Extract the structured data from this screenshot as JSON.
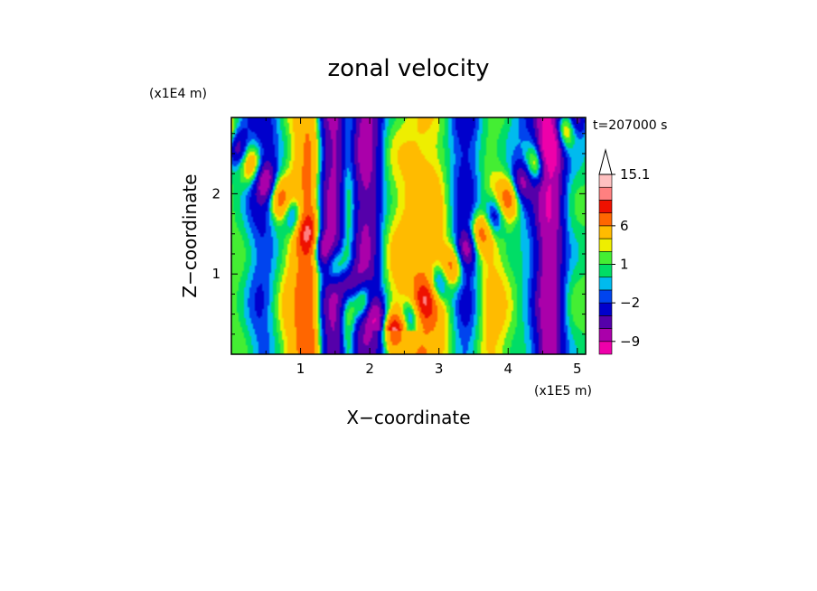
{
  "chart_data": {
    "type": "heatmap",
    "title": "zonal velocity",
    "xlabel": "X−coordinate",
    "ylabel": "Z−coordinate",
    "x_unit": "(x1E5 m)",
    "y_unit": "(x1E4 m)",
    "time_label": "t=207000 s",
    "xlim": [
      0,
      5.12
    ],
    "ylim": [
      0,
      2.95
    ],
    "x_ticks": [
      1,
      2,
      3,
      4,
      5
    ],
    "y_ticks": [
      1,
      2
    ],
    "colorbar": {
      "levels": [
        -12,
        -9,
        -6,
        -4,
        -2,
        -1,
        0,
        1,
        2,
        3,
        6,
        9,
        12,
        15.1
      ],
      "colors": [
        "#ee00aa",
        "#aa00aa",
        "#5500aa",
        "#0000cc",
        "#0044ee",
        "#00bbee",
        "#00dd66",
        "#44ee33",
        "#eeee00",
        "#ffbb00",
        "#ff6600",
        "#ee1100",
        "#ff8080",
        "#ffc0c0"
      ],
      "labels": [
        {
          "value": 15.1,
          "text": "15.1"
        },
        {
          "value": 6,
          "text": "6"
        },
        {
          "value": 1,
          "text": "1"
        },
        {
          "value": -2,
          "text": "−2"
        },
        {
          "value": -9,
          "text": "−9"
        }
      ],
      "extend_max": true
    }
  }
}
